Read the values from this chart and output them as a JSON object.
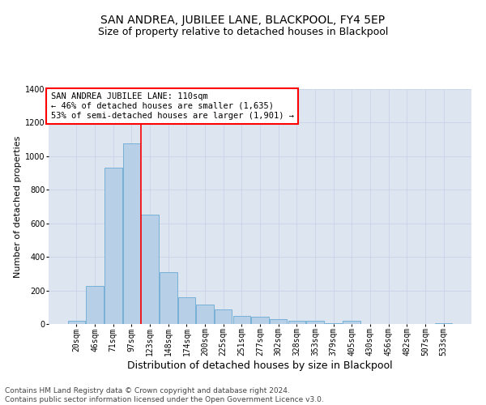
{
  "title": "SAN ANDREA, JUBILEE LANE, BLACKPOOL, FY4 5EP",
  "subtitle": "Size of property relative to detached houses in Blackpool",
  "xlabel": "Distribution of detached houses by size in Blackpool",
  "ylabel": "Number of detached properties",
  "bin_labels": [
    "20sqm",
    "46sqm",
    "71sqm",
    "97sqm",
    "123sqm",
    "148sqm",
    "174sqm",
    "200sqm",
    "225sqm",
    "251sqm",
    "277sqm",
    "302sqm",
    "328sqm",
    "353sqm",
    "379sqm",
    "405sqm",
    "430sqm",
    "456sqm",
    "482sqm",
    "507sqm",
    "533sqm"
  ],
  "bar_heights": [
    18,
    225,
    930,
    1075,
    650,
    310,
    160,
    115,
    85,
    50,
    45,
    30,
    20,
    18,
    5,
    18,
    0,
    0,
    0,
    0,
    5
  ],
  "bar_color": "#b8cfe8",
  "bar_edge_color": "#6aaad4",
  "grid_color": "#c8d4e8",
  "background_color": "#dde6f0",
  "vline_bin_index": 3.5,
  "vline_color": "red",
  "annotation_text": "SAN ANDREA JUBILEE LANE: 110sqm\n← 46% of detached houses are smaller (1,635)\n53% of semi-detached houses are larger (1,901) →",
  "annotation_box_color": "white",
  "annotation_box_edge": "red",
  "ylim": [
    0,
    1400
  ],
  "yticks": [
    0,
    200,
    400,
    600,
    800,
    1000,
    1200,
    1400
  ],
  "footer_text": "Contains HM Land Registry data © Crown copyright and database right 2024.\nContains public sector information licensed under the Open Government Licence v3.0.",
  "title_fontsize": 10,
  "subtitle_fontsize": 9,
  "xlabel_fontsize": 9,
  "ylabel_fontsize": 8,
  "tick_fontsize": 7,
  "annotation_fontsize": 7.5,
  "footer_fontsize": 6.5
}
